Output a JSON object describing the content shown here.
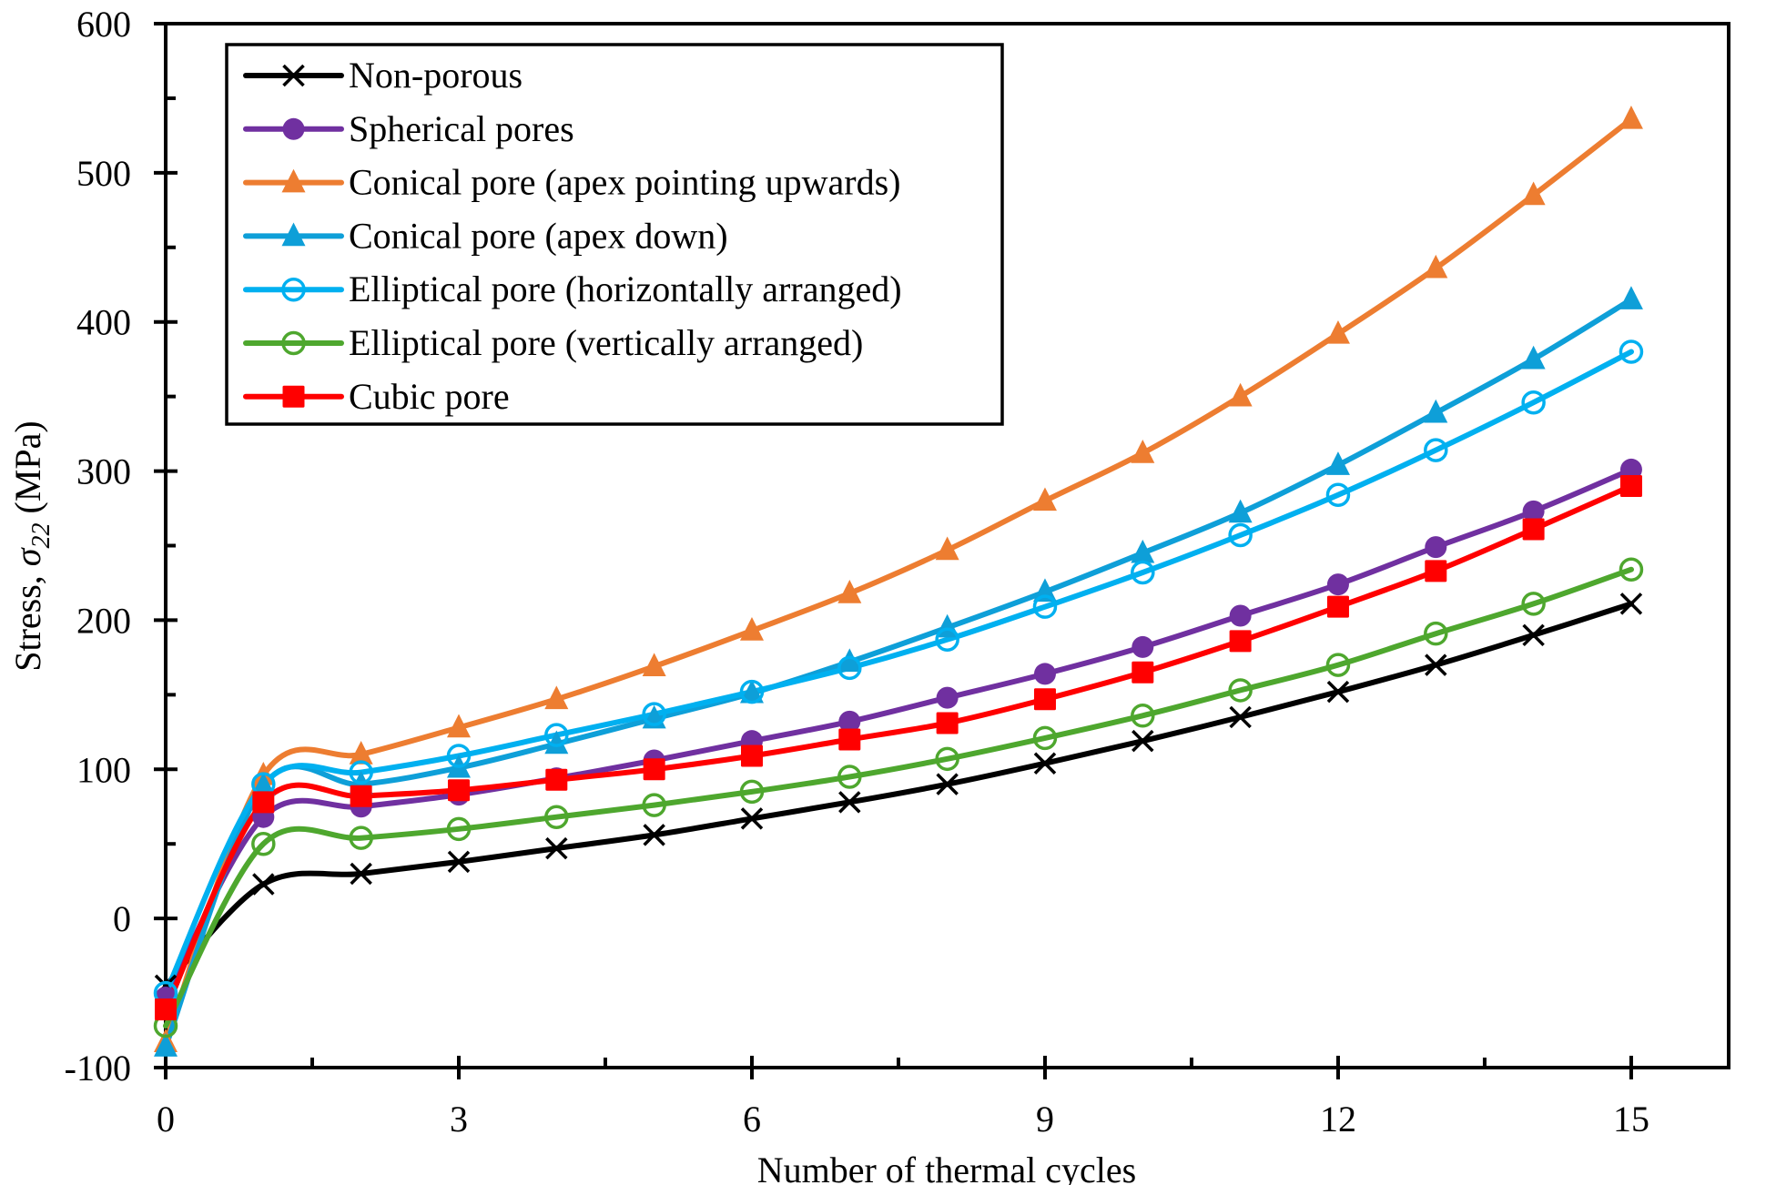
{
  "chart_data": {
    "type": "line",
    "title": "",
    "xlabel": "Number of thermal cycles",
    "ylabel": {
      "prefix": "Stress, ",
      "symbol": "σ",
      "subscript": "22",
      "suffix": " (MPa)"
    },
    "xlim": [
      0,
      16
    ],
    "ylim": [
      -100,
      600
    ],
    "xticks": [
      0,
      3,
      6,
      9,
      12,
      15
    ],
    "xtick_labels": [
      "0",
      "3",
      "6",
      "9",
      "12",
      "15"
    ],
    "xminor_ticks": [
      1.5,
      4.5,
      7.5,
      10.5,
      13.5
    ],
    "yticks": [
      -100,
      0,
      100,
      200,
      300,
      400,
      500,
      600
    ],
    "ytick_labels": [
      "-100",
      "0",
      "100",
      "200",
      "300",
      "400",
      "500",
      "600"
    ],
    "yminor_ticks": [
      -50,
      50,
      150,
      250,
      350,
      450,
      550
    ],
    "grid": false,
    "legend_position": "top-left",
    "smoothed": true,
    "x": [
      0,
      1,
      2,
      3,
      4,
      5,
      6,
      7,
      8,
      9,
      10,
      11,
      12,
      13,
      14,
      15
    ],
    "series": [
      {
        "name": "Non-porous",
        "color": "#000000",
        "marker": "x",
        "values": [
          -45,
          23,
          30,
          38,
          47,
          56,
          67,
          78,
          90,
          104,
          119,
          135,
          152,
          170,
          190,
          211
        ]
      },
      {
        "name": "Spherical pores",
        "color": "#7030A0",
        "marker": "filled-circle",
        "values": [
          -53,
          68,
          75,
          83,
          94,
          106,
          119,
          132,
          148,
          164,
          182,
          203,
          224,
          249,
          273,
          301
        ]
      },
      {
        "name": "Conical pore (apex pointing upwards)",
        "color": "#ED7D31",
        "marker": "filled-triangle",
        "values": [
          -83,
          96,
          110,
          128,
          147,
          169,
          193,
          218,
          247,
          280,
          312,
          350,
          392,
          436,
          485,
          536
        ]
      },
      {
        "name": "Conical pore (apex down)",
        "color": "#0E9FD8",
        "marker": "filled-triangle",
        "values": [
          -86,
          89,
          90,
          101,
          117,
          134,
          151,
          172,
          195,
          219,
          245,
          272,
          304,
          339,
          375,
          415
        ]
      },
      {
        "name": "Elliptical pore (horizontally arranged)",
        "color": "#00B0F0",
        "marker": "open-circle",
        "values": [
          -50,
          90,
          98,
          109,
          123,
          137,
          152,
          168,
          187,
          209,
          232,
          257,
          284,
          314,
          346,
          380
        ]
      },
      {
        "name": "Elliptical pore (vertically arranged)",
        "color": "#4EA72E",
        "marker": "open-circle",
        "values": [
          -72,
          50,
          54,
          60,
          68,
          76,
          85,
          95,
          107,
          121,
          136,
          153,
          170,
          191,
          211,
          234
        ]
      },
      {
        "name": "Cubic pore",
        "color": "#FF0000",
        "marker": "filled-square",
        "values": [
          -61,
          78,
          82,
          86,
          93,
          100,
          109,
          120,
          131,
          147,
          165,
          186,
          209,
          233,
          261,
          290
        ]
      }
    ]
  }
}
